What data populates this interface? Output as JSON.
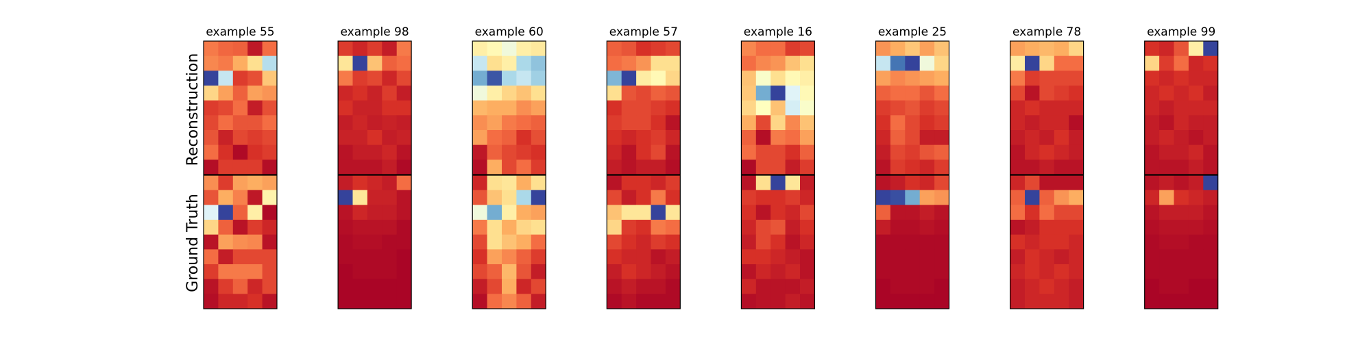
{
  "chart_data": {
    "type": "heatmap",
    "colormap": "RdYlBu_r",
    "row_labels": [
      "Reconstruction",
      "Ground Truth"
    ],
    "panels": [
      {
        "title": "example 55",
        "reconstruction": [
          [
            0.78,
            0.81,
            0.82,
            0.95,
            0.8
          ],
          [
            0.76,
            0.78,
            0.7,
            0.6,
            0.32
          ],
          [
            0.02,
            0.35,
            0.88,
            0.85,
            0.65
          ],
          [
            0.62,
            0.72,
            0.82,
            0.72,
            0.74
          ],
          [
            0.88,
            0.86,
            0.8,
            0.94,
            0.85
          ],
          [
            0.86,
            0.8,
            0.84,
            0.84,
            0.8
          ],
          [
            0.84,
            0.93,
            0.86,
            0.88,
            0.86
          ],
          [
            0.8,
            0.9,
            0.98,
            0.9,
            0.88
          ],
          [
            0.97,
            0.88,
            0.88,
            0.88,
            0.97
          ]
        ],
        "ground_truth": [
          [
            0.75,
            0.88,
            0.72,
            0.7,
            0.72
          ],
          [
            0.84,
            0.7,
            0.77,
            0.95,
            0.54
          ],
          [
            0.4,
            0.02,
            0.82,
            0.55,
            0.98
          ],
          [
            0.62,
            0.82,
            0.96,
            0.88,
            0.92
          ],
          [
            0.96,
            0.72,
            0.75,
            0.76,
            0.96
          ],
          [
            0.8,
            0.94,
            0.86,
            0.86,
            0.86
          ],
          [
            0.88,
            0.78,
            0.78,
            0.78,
            0.86
          ],
          [
            0.96,
            0.88,
            0.82,
            0.92,
            0.86
          ],
          [
            0.97,
            0.92,
            0.92,
            0.9,
            0.96
          ]
        ]
      },
      {
        "title": "example 98",
        "reconstruction": [
          [
            0.88,
            0.92,
            0.88,
            0.94,
            0.78
          ],
          [
            0.58,
            0.02,
            0.66,
            0.82,
            0.8
          ],
          [
            0.78,
            0.88,
            0.86,
            0.92,
            0.86
          ],
          [
            0.92,
            0.9,
            0.93,
            0.88,
            0.94
          ],
          [
            0.9,
            0.93,
            0.93,
            0.9,
            0.9
          ],
          [
            0.94,
            0.92,
            0.94,
            0.93,
            0.94
          ],
          [
            0.93,
            0.93,
            0.9,
            0.94,
            0.93
          ],
          [
            0.96,
            0.94,
            0.94,
            0.92,
            0.96
          ],
          [
            0.96,
            0.96,
            0.96,
            0.94,
            0.98
          ]
        ],
        "ground_truth": [
          [
            0.94,
            0.9,
            0.92,
            0.94,
            0.8
          ],
          [
            0.02,
            0.58,
            0.93,
            0.93,
            0.96
          ],
          [
            0.96,
            0.92,
            0.94,
            0.94,
            0.96
          ],
          [
            0.97,
            0.96,
            0.96,
            0.96,
            0.98
          ],
          [
            0.98,
            0.97,
            0.97,
            0.98,
            0.98
          ],
          [
            0.98,
            0.98,
            0.98,
            0.98,
            0.99
          ],
          [
            0.99,
            0.98,
            0.98,
            0.98,
            0.99
          ],
          [
            0.99,
            0.99,
            0.99,
            0.99,
            0.99
          ],
          [
            0.99,
            0.99,
            0.99,
            0.99,
            0.99
          ]
        ]
      },
      {
        "title": "example 60",
        "reconstruction": [
          [
            0.55,
            0.52,
            0.45,
            0.55,
            0.57
          ],
          [
            0.35,
            0.6,
            0.55,
            0.3,
            0.25
          ],
          [
            0.2,
            0.05,
            0.3,
            0.35,
            0.28
          ],
          [
            0.45,
            0.55,
            0.62,
            0.66,
            0.6
          ],
          [
            0.68,
            0.7,
            0.7,
            0.75,
            0.72
          ],
          [
            0.75,
            0.72,
            0.78,
            0.8,
            0.82
          ],
          [
            0.72,
            0.8,
            0.82,
            0.9,
            0.85
          ],
          [
            0.95,
            0.82,
            0.86,
            0.88,
            0.9
          ],
          [
            0.97,
            0.7,
            0.86,
            0.8,
            0.88
          ]
        ],
        "ground_truth": [
          [
            0.92,
            0.6,
            0.58,
            0.7,
            0.6
          ],
          [
            0.84,
            0.66,
            0.6,
            0.3,
            0.02
          ],
          [
            0.45,
            0.2,
            0.55,
            0.7,
            0.72
          ],
          [
            0.78,
            0.6,
            0.7,
            0.62,
            0.6
          ],
          [
            0.86,
            0.6,
            0.66,
            0.7,
            0.8
          ],
          [
            0.9,
            0.72,
            0.76,
            0.82,
            0.88
          ],
          [
            0.86,
            0.82,
            0.68,
            0.84,
            0.94
          ],
          [
            0.94,
            0.86,
            0.7,
            0.92,
            0.86
          ],
          [
            0.97,
            0.8,
            0.76,
            0.82,
            0.94
          ]
        ]
      },
      {
        "title": "example 57",
        "reconstruction": [
          [
            0.82,
            0.84,
            0.9,
            0.88,
            0.86
          ],
          [
            0.8,
            0.78,
            0.74,
            0.6,
            0.6
          ],
          [
            0.22,
            0.02,
            0.56,
            0.52,
            0.62
          ],
          [
            0.6,
            0.84,
            0.86,
            0.82,
            0.84
          ],
          [
            0.9,
            0.86,
            0.86,
            0.88,
            0.9
          ],
          [
            0.88,
            0.86,
            0.86,
            0.9,
            0.96
          ],
          [
            0.9,
            0.92,
            0.9,
            0.88,
            0.92
          ],
          [
            0.92,
            0.96,
            0.9,
            0.86,
            0.96
          ],
          [
            0.94,
            0.96,
            0.94,
            0.94,
            0.97
          ]
        ],
        "ground_truth": [
          [
            0.96,
            0.9,
            0.9,
            0.92,
            0.88
          ],
          [
            0.86,
            0.94,
            0.9,
            0.78,
            0.9
          ],
          [
            0.66,
            0.58,
            0.58,
            0.02,
            0.58
          ],
          [
            0.62,
            0.88,
            0.9,
            0.78,
            0.8
          ],
          [
            0.86,
            0.9,
            0.92,
            0.88,
            0.9
          ],
          [
            0.9,
            0.92,
            0.92,
            0.96,
            0.94
          ],
          [
            0.94,
            0.9,
            0.92,
            0.94,
            0.96
          ],
          [
            0.96,
            0.94,
            0.96,
            0.96,
            0.98
          ],
          [
            0.98,
            0.96,
            0.98,
            0.98,
            0.98
          ]
        ]
      },
      {
        "title": "example 16",
        "reconstruction": [
          [
            0.76,
            0.8,
            0.8,
            0.88,
            0.86
          ],
          [
            0.8,
            0.76,
            0.74,
            0.66,
            0.6
          ],
          [
            0.66,
            0.48,
            0.6,
            0.52,
            0.55
          ],
          [
            0.65,
            0.2,
            0.02,
            0.4,
            0.52
          ],
          [
            0.62,
            0.5,
            0.66,
            0.38,
            0.48
          ],
          [
            0.7,
            0.86,
            0.62,
            0.76,
            0.66
          ],
          [
            0.82,
            0.97,
            0.78,
            0.8,
            0.72
          ],
          [
            0.8,
            0.86,
            0.86,
            0.9,
            0.82
          ],
          [
            0.98,
            0.86,
            0.86,
            0.94,
            0.88
          ]
        ],
        "ground_truth": [
          [
            0.96,
            0.6,
            0.02,
            0.58,
            0.94
          ],
          [
            0.88,
            0.9,
            0.9,
            0.88,
            0.92
          ],
          [
            0.9,
            0.96,
            0.9,
            0.92,
            0.86
          ],
          [
            0.92,
            0.86,
            0.84,
            0.94,
            0.9
          ],
          [
            0.94,
            0.86,
            0.9,
            0.96,
            0.92
          ],
          [
            0.9,
            0.9,
            0.92,
            0.94,
            0.96
          ],
          [
            0.96,
            0.92,
            0.94,
            0.92,
            0.96
          ],
          [
            0.92,
            0.96,
            0.96,
            0.96,
            0.94
          ],
          [
            0.97,
            0.96,
            0.96,
            0.94,
            0.96
          ]
        ]
      },
      {
        "title": "example 25",
        "reconstruction": [
          [
            0.74,
            0.7,
            0.65,
            0.72,
            0.66
          ],
          [
            0.35,
            0.1,
            0.02,
            0.45,
            0.62
          ],
          [
            0.72,
            0.76,
            0.74,
            0.72,
            0.7
          ],
          [
            0.82,
            0.8,
            0.8,
            0.84,
            0.8
          ],
          [
            0.88,
            0.86,
            0.84,
            0.88,
            0.86
          ],
          [
            0.9,
            0.8,
            0.86,
            0.9,
            0.88
          ],
          [
            0.92,
            0.82,
            0.86,
            0.94,
            0.94
          ],
          [
            0.94,
            0.86,
            0.88,
            0.84,
            0.82
          ],
          [
            0.96,
            0.88,
            0.9,
            0.92,
            0.88
          ]
        ],
        "ground_truth": [
          [
            0.96,
            0.94,
            0.9,
            0.92,
            0.86
          ],
          [
            0.02,
            0.04,
            0.2,
            0.72,
            0.74
          ],
          [
            0.82,
            0.96,
            0.96,
            0.94,
            0.96
          ],
          [
            0.94,
            0.97,
            0.97,
            0.96,
            0.97
          ],
          [
            0.98,
            0.98,
            0.98,
            0.98,
            0.98
          ],
          [
            0.98,
            0.98,
            0.98,
            0.98,
            0.98
          ],
          [
            0.98,
            0.98,
            0.98,
            0.98,
            0.98
          ],
          [
            0.99,
            0.98,
            0.98,
            0.98,
            0.99
          ],
          [
            0.99,
            0.99,
            0.99,
            0.99,
            0.99
          ]
        ]
      },
      {
        "title": "example 78",
        "reconstruction": [
          [
            0.72,
            0.7,
            0.68,
            0.7,
            0.62
          ],
          [
            0.56,
            0.02,
            0.62,
            0.8,
            0.8
          ],
          [
            0.78,
            0.88,
            0.86,
            0.86,
            0.86
          ],
          [
            0.86,
            0.96,
            0.86,
            0.88,
            0.9
          ],
          [
            0.92,
            0.9,
            0.92,
            0.92,
            0.92
          ],
          [
            0.92,
            0.94,
            0.92,
            0.92,
            0.97
          ],
          [
            0.94,
            0.92,
            0.94,
            0.9,
            0.94
          ],
          [
            0.96,
            0.92,
            0.9,
            0.92,
            0.94
          ],
          [
            0.96,
            0.96,
            0.94,
            0.96,
            0.96
          ]
        ],
        "ground_truth": [
          [
            0.92,
            0.86,
            0.96,
            0.96,
            0.96
          ],
          [
            0.82,
            0.02,
            0.82,
            0.74,
            0.7
          ],
          [
            0.8,
            0.9,
            0.8,
            0.86,
            0.86
          ],
          [
            0.96,
            0.94,
            0.9,
            0.9,
            0.9
          ],
          [
            0.9,
            0.92,
            0.9,
            0.9,
            0.92
          ],
          [
            0.94,
            0.9,
            0.92,
            0.94,
            0.92
          ],
          [
            0.92,
            0.9,
            0.92,
            0.9,
            0.92
          ],
          [
            0.94,
            0.92,
            0.9,
            0.92,
            0.94
          ],
          [
            0.94,
            0.92,
            0.92,
            0.92,
            0.94
          ]
        ]
      },
      {
        "title": "example 99",
        "reconstruction": [
          [
            0.9,
            0.92,
            0.84,
            0.55,
            0.02
          ],
          [
            0.62,
            0.88,
            0.8,
            0.92,
            0.9
          ],
          [
            0.9,
            0.92,
            0.9,
            0.92,
            0.92
          ],
          [
            0.92,
            0.9,
            0.92,
            0.9,
            0.94
          ],
          [
            0.92,
            0.94,
            0.92,
            0.92,
            0.92
          ],
          [
            0.94,
            0.96,
            0.92,
            0.94,
            0.94
          ],
          [
            0.94,
            0.92,
            0.94,
            0.96,
            0.94
          ],
          [
            0.96,
            0.94,
            0.94,
            0.92,
            0.96
          ],
          [
            0.96,
            0.96,
            0.96,
            0.94,
            0.96
          ]
        ],
        "ground_truth": [
          [
            0.96,
            0.94,
            0.96,
            0.94,
            0.02
          ],
          [
            0.92,
            0.72,
            0.9,
            0.92,
            0.94
          ],
          [
            0.96,
            0.94,
            0.94,
            0.94,
            0.96
          ],
          [
            0.97,
            0.96,
            0.96,
            0.96,
            0.97
          ],
          [
            0.98,
            0.97,
            0.97,
            0.98,
            0.98
          ],
          [
            0.98,
            0.98,
            0.98,
            0.98,
            0.98
          ],
          [
            0.98,
            0.98,
            0.98,
            0.98,
            0.98
          ],
          [
            0.99,
            0.98,
            0.98,
            0.99,
            0.99
          ],
          [
            0.99,
            0.99,
            0.99,
            0.99,
            0.99
          ]
        ]
      }
    ]
  }
}
